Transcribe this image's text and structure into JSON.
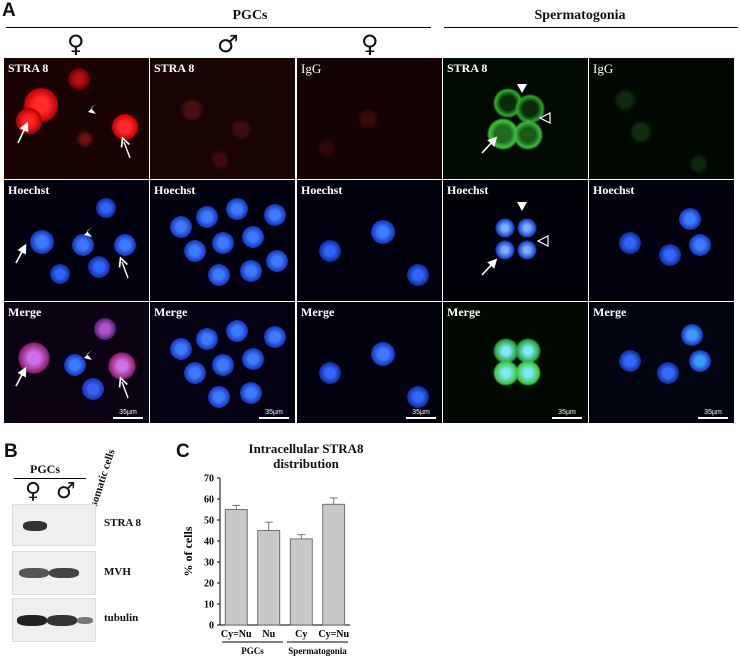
{
  "panels": {
    "a": "A",
    "b": "B",
    "c": "C"
  },
  "panel_a": {
    "group_pgcs": "PGCs",
    "group_spermatogonia": "Spermatogonia",
    "sex_female": "♀",
    "sex_male": "♂",
    "row_labels": {
      "stra8": "STRA 8",
      "igg": "IgG",
      "hoechst": "Hoechst",
      "merge": "Merge"
    },
    "scale_bar": "35µm"
  },
  "panel_b": {
    "group": "PGCs",
    "sex_female": "♀",
    "sex_male": "♂",
    "somatic": "somatic cells",
    "rows": [
      "STRA 8",
      "MVH",
      "tubulin"
    ]
  },
  "chart_data": {
    "type": "bar",
    "title": "Intracellular STRA8 distribution",
    "title_line1": "Intracellular STRA8",
    "title_line2": "distribution",
    "ylabel": "% of cells",
    "ylim": [
      0,
      70
    ],
    "yticks": [
      0,
      10,
      20,
      30,
      40,
      50,
      60,
      70
    ],
    "categories": [
      "Cy=Nu",
      "Nu",
      "Cy",
      "Cy=Nu"
    ],
    "values": [
      55,
      45,
      41,
      57.5
    ],
    "errors": [
      2,
      4,
      2,
      3
    ],
    "groups": [
      {
        "label": "PGCs",
        "start": 0,
        "end": 1
      },
      {
        "label": "Spermatogonia",
        "start": 2,
        "end": 3
      }
    ],
    "bar_color": "#c8c8c8",
    "grid": false
  },
  "colors": {
    "stra8_red": "#e0141a",
    "stra8_green": "#3cc83c",
    "hoechst_blue": "#2a5cff",
    "merge_magenta": "#c060d8"
  }
}
